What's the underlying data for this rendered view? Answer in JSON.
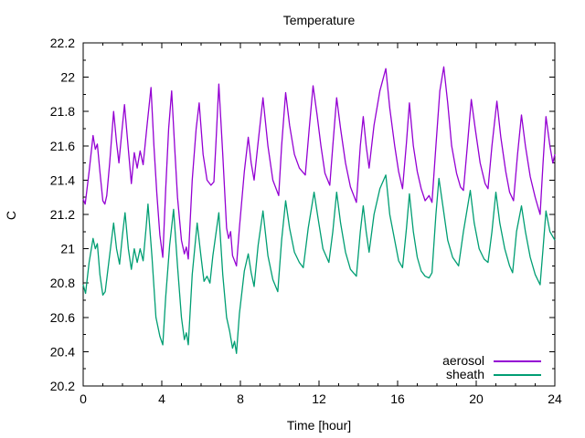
{
  "chart_data": {
    "type": "line",
    "title": "Temperature",
    "xlabel": "Time [hour]",
    "ylabel": "C",
    "xlim": [
      0,
      24
    ],
    "ylim": [
      20.2,
      22.2
    ],
    "xticks": [
      {
        "v": 0,
        "label": "0"
      },
      {
        "v": 4,
        "label": "4"
      },
      {
        "v": 8,
        "label": "8"
      },
      {
        "v": 12,
        "label": "12"
      },
      {
        "v": 16,
        "label": "16"
      },
      {
        "v": 20,
        "label": "20"
      },
      {
        "v": 24,
        "label": "24"
      }
    ],
    "yticks": [
      {
        "v": 20.2,
        "label": "20.2"
      },
      {
        "v": 20.4,
        "label": "20.4"
      },
      {
        "v": 20.6,
        "label": "20.6"
      },
      {
        "v": 20.8,
        "label": "20.8"
      },
      {
        "v": 21.0,
        "label": "21"
      },
      {
        "v": 21.2,
        "label": "21.2"
      },
      {
        "v": 21.4,
        "label": "21.4"
      },
      {
        "v": 21.6,
        "label": "21.6"
      },
      {
        "v": 21.8,
        "label": "21.8"
      },
      {
        "v": 22.0,
        "label": "22"
      },
      {
        "v": 22.2,
        "label": "22.2"
      }
    ],
    "x_minor_step": 1,
    "y_minor_step": 0.1,
    "grid": false,
    "axis_color": "#000000",
    "background_color": "#ffffff",
    "legend_position": "bottom-right",
    "series": [
      {
        "name": "aerosol",
        "color": "#9400d3",
        "x": [
          0,
          0.1,
          0.3,
          0.5,
          0.62,
          0.72,
          0.85,
          1.0,
          1.1,
          1.2,
          1.35,
          1.55,
          1.7,
          1.82,
          1.95,
          2.1,
          2.3,
          2.45,
          2.6,
          2.75,
          2.9,
          3.05,
          3.25,
          3.45,
          3.6,
          3.75,
          3.9,
          4.05,
          4.2,
          4.35,
          4.5,
          4.65,
          4.8,
          5.0,
          5.15,
          5.25,
          5.35,
          5.55,
          5.75,
          5.9,
          6.1,
          6.3,
          6.5,
          6.65,
          6.75,
          6.9,
          7.1,
          7.3,
          7.4,
          7.5,
          7.6,
          7.7,
          7.8,
          7.95,
          8.2,
          8.4,
          8.55,
          8.7,
          8.9,
          9.15,
          9.4,
          9.65,
          9.95,
          10.1,
          10.3,
          10.5,
          10.75,
          11.0,
          11.3,
          11.5,
          11.7,
          11.9,
          12.1,
          12.3,
          12.55,
          12.7,
          12.9,
          13.1,
          13.35,
          13.6,
          13.9,
          14.1,
          14.25,
          14.4,
          14.55,
          14.8,
          15.1,
          15.4,
          15.6,
          15.85,
          16.05,
          16.25,
          16.45,
          16.6,
          16.8,
          17.0,
          17.2,
          17.4,
          17.6,
          17.75,
          17.95,
          18.15,
          18.35,
          18.55,
          18.75,
          19.0,
          19.2,
          19.35,
          19.55,
          19.75,
          19.95,
          20.2,
          20.45,
          20.6,
          20.8,
          21.05,
          21.25,
          21.5,
          21.7,
          21.9,
          22.1,
          22.3,
          22.5,
          22.75,
          23.0,
          23.25,
          23.4,
          23.55,
          23.75,
          23.9,
          24.0
        ],
        "y": [
          21.29,
          21.26,
          21.45,
          21.66,
          21.58,
          21.61,
          21.45,
          21.28,
          21.26,
          21.31,
          21.5,
          21.8,
          21.62,
          21.5,
          21.66,
          21.84,
          21.58,
          21.38,
          21.56,
          21.47,
          21.57,
          21.49,
          21.72,
          21.94,
          21.6,
          21.32,
          21.08,
          20.95,
          21.35,
          21.7,
          21.92,
          21.6,
          21.3,
          21.05,
          20.97,
          21.01,
          20.94,
          21.4,
          21.7,
          21.85,
          21.55,
          21.4,
          21.37,
          21.39,
          21.6,
          21.96,
          21.55,
          21.12,
          21.06,
          21.1,
          20.96,
          20.93,
          20.9,
          21.12,
          21.45,
          21.65,
          21.5,
          21.4,
          21.62,
          21.88,
          21.6,
          21.4,
          21.31,
          21.6,
          21.91,
          21.72,
          21.55,
          21.47,
          21.43,
          21.7,
          21.95,
          21.78,
          21.6,
          21.44,
          21.37,
          21.6,
          21.88,
          21.7,
          21.5,
          21.36,
          21.27,
          21.6,
          21.77,
          21.6,
          21.47,
          21.72,
          21.92,
          22.05,
          21.82,
          21.6,
          21.45,
          21.35,
          21.62,
          21.85,
          21.6,
          21.45,
          21.35,
          21.28,
          21.31,
          21.27,
          21.6,
          21.92,
          22.06,
          21.85,
          21.6,
          21.44,
          21.36,
          21.34,
          21.6,
          21.87,
          21.7,
          21.5,
          21.38,
          21.35,
          21.6,
          21.86,
          21.65,
          21.45,
          21.33,
          21.28,
          21.55,
          21.78,
          21.6,
          21.42,
          21.3,
          21.2,
          21.5,
          21.77,
          21.6,
          21.5,
          21.55
        ]
      },
      {
        "name": "sheath",
        "color": "#009e73",
        "x": [
          0,
          0.12,
          0.3,
          0.5,
          0.62,
          0.72,
          0.85,
          1.0,
          1.12,
          1.3,
          1.55,
          1.7,
          1.85,
          2.0,
          2.13,
          2.3,
          2.45,
          2.6,
          2.75,
          2.9,
          3.05,
          3.2,
          3.3,
          3.5,
          3.7,
          3.9,
          4.05,
          4.2,
          4.4,
          4.6,
          4.8,
          5.0,
          5.15,
          5.25,
          5.35,
          5.55,
          5.8,
          6.0,
          6.15,
          6.3,
          6.45,
          6.6,
          6.9,
          7.1,
          7.3,
          7.45,
          7.6,
          7.7,
          7.8,
          7.95,
          8.2,
          8.4,
          8.55,
          8.7,
          8.9,
          9.15,
          9.4,
          9.65,
          9.9,
          10.1,
          10.3,
          10.5,
          10.75,
          11.0,
          11.2,
          11.45,
          11.75,
          11.95,
          12.2,
          12.5,
          12.7,
          12.9,
          13.1,
          13.35,
          13.6,
          13.9,
          14.1,
          14.25,
          14.4,
          14.55,
          14.8,
          15.1,
          15.4,
          15.6,
          15.85,
          16.05,
          16.25,
          16.45,
          16.6,
          16.8,
          17.0,
          17.2,
          17.4,
          17.6,
          17.75,
          17.95,
          18.1,
          18.3,
          18.55,
          18.8,
          19.1,
          19.35,
          19.7,
          19.9,
          20.15,
          20.4,
          20.6,
          20.8,
          21.0,
          21.2,
          21.45,
          21.7,
          21.85,
          22.05,
          22.3,
          22.5,
          22.75,
          23.0,
          23.25,
          23.4,
          23.55,
          23.75,
          24.0
        ],
        "y": [
          20.79,
          20.74,
          20.92,
          21.06,
          21.0,
          21.03,
          20.85,
          20.73,
          20.75,
          20.92,
          21.15,
          21.0,
          20.91,
          21.08,
          21.21,
          21.0,
          20.88,
          21.0,
          20.92,
          21.0,
          20.93,
          21.12,
          21.26,
          20.95,
          20.6,
          20.49,
          20.44,
          20.72,
          21.02,
          21.23,
          20.9,
          20.6,
          20.47,
          20.51,
          20.44,
          20.85,
          21.15,
          20.95,
          20.81,
          20.84,
          20.8,
          20.96,
          21.21,
          20.85,
          20.6,
          20.52,
          20.42,
          20.46,
          20.39,
          20.62,
          20.87,
          20.97,
          20.86,
          20.78,
          21.02,
          21.22,
          20.96,
          20.82,
          20.75,
          21.05,
          21.28,
          21.12,
          20.98,
          20.92,
          20.89,
          21.12,
          21.33,
          21.18,
          21.0,
          20.92,
          21.1,
          21.33,
          21.15,
          20.98,
          20.88,
          20.84,
          21.1,
          21.25,
          21.1,
          20.98,
          21.2,
          21.35,
          21.43,
          21.2,
          21.05,
          20.93,
          20.89,
          21.12,
          21.32,
          21.1,
          20.95,
          20.87,
          20.84,
          20.83,
          20.86,
          21.2,
          21.41,
          21.25,
          21.05,
          20.95,
          20.9,
          21.1,
          21.34,
          21.15,
          21.0,
          20.94,
          20.92,
          21.1,
          21.33,
          21.15,
          21.0,
          20.9,
          20.86,
          21.1,
          21.25,
          21.1,
          20.95,
          20.85,
          20.79,
          21.0,
          21.22,
          21.1,
          21.05
        ]
      }
    ]
  }
}
